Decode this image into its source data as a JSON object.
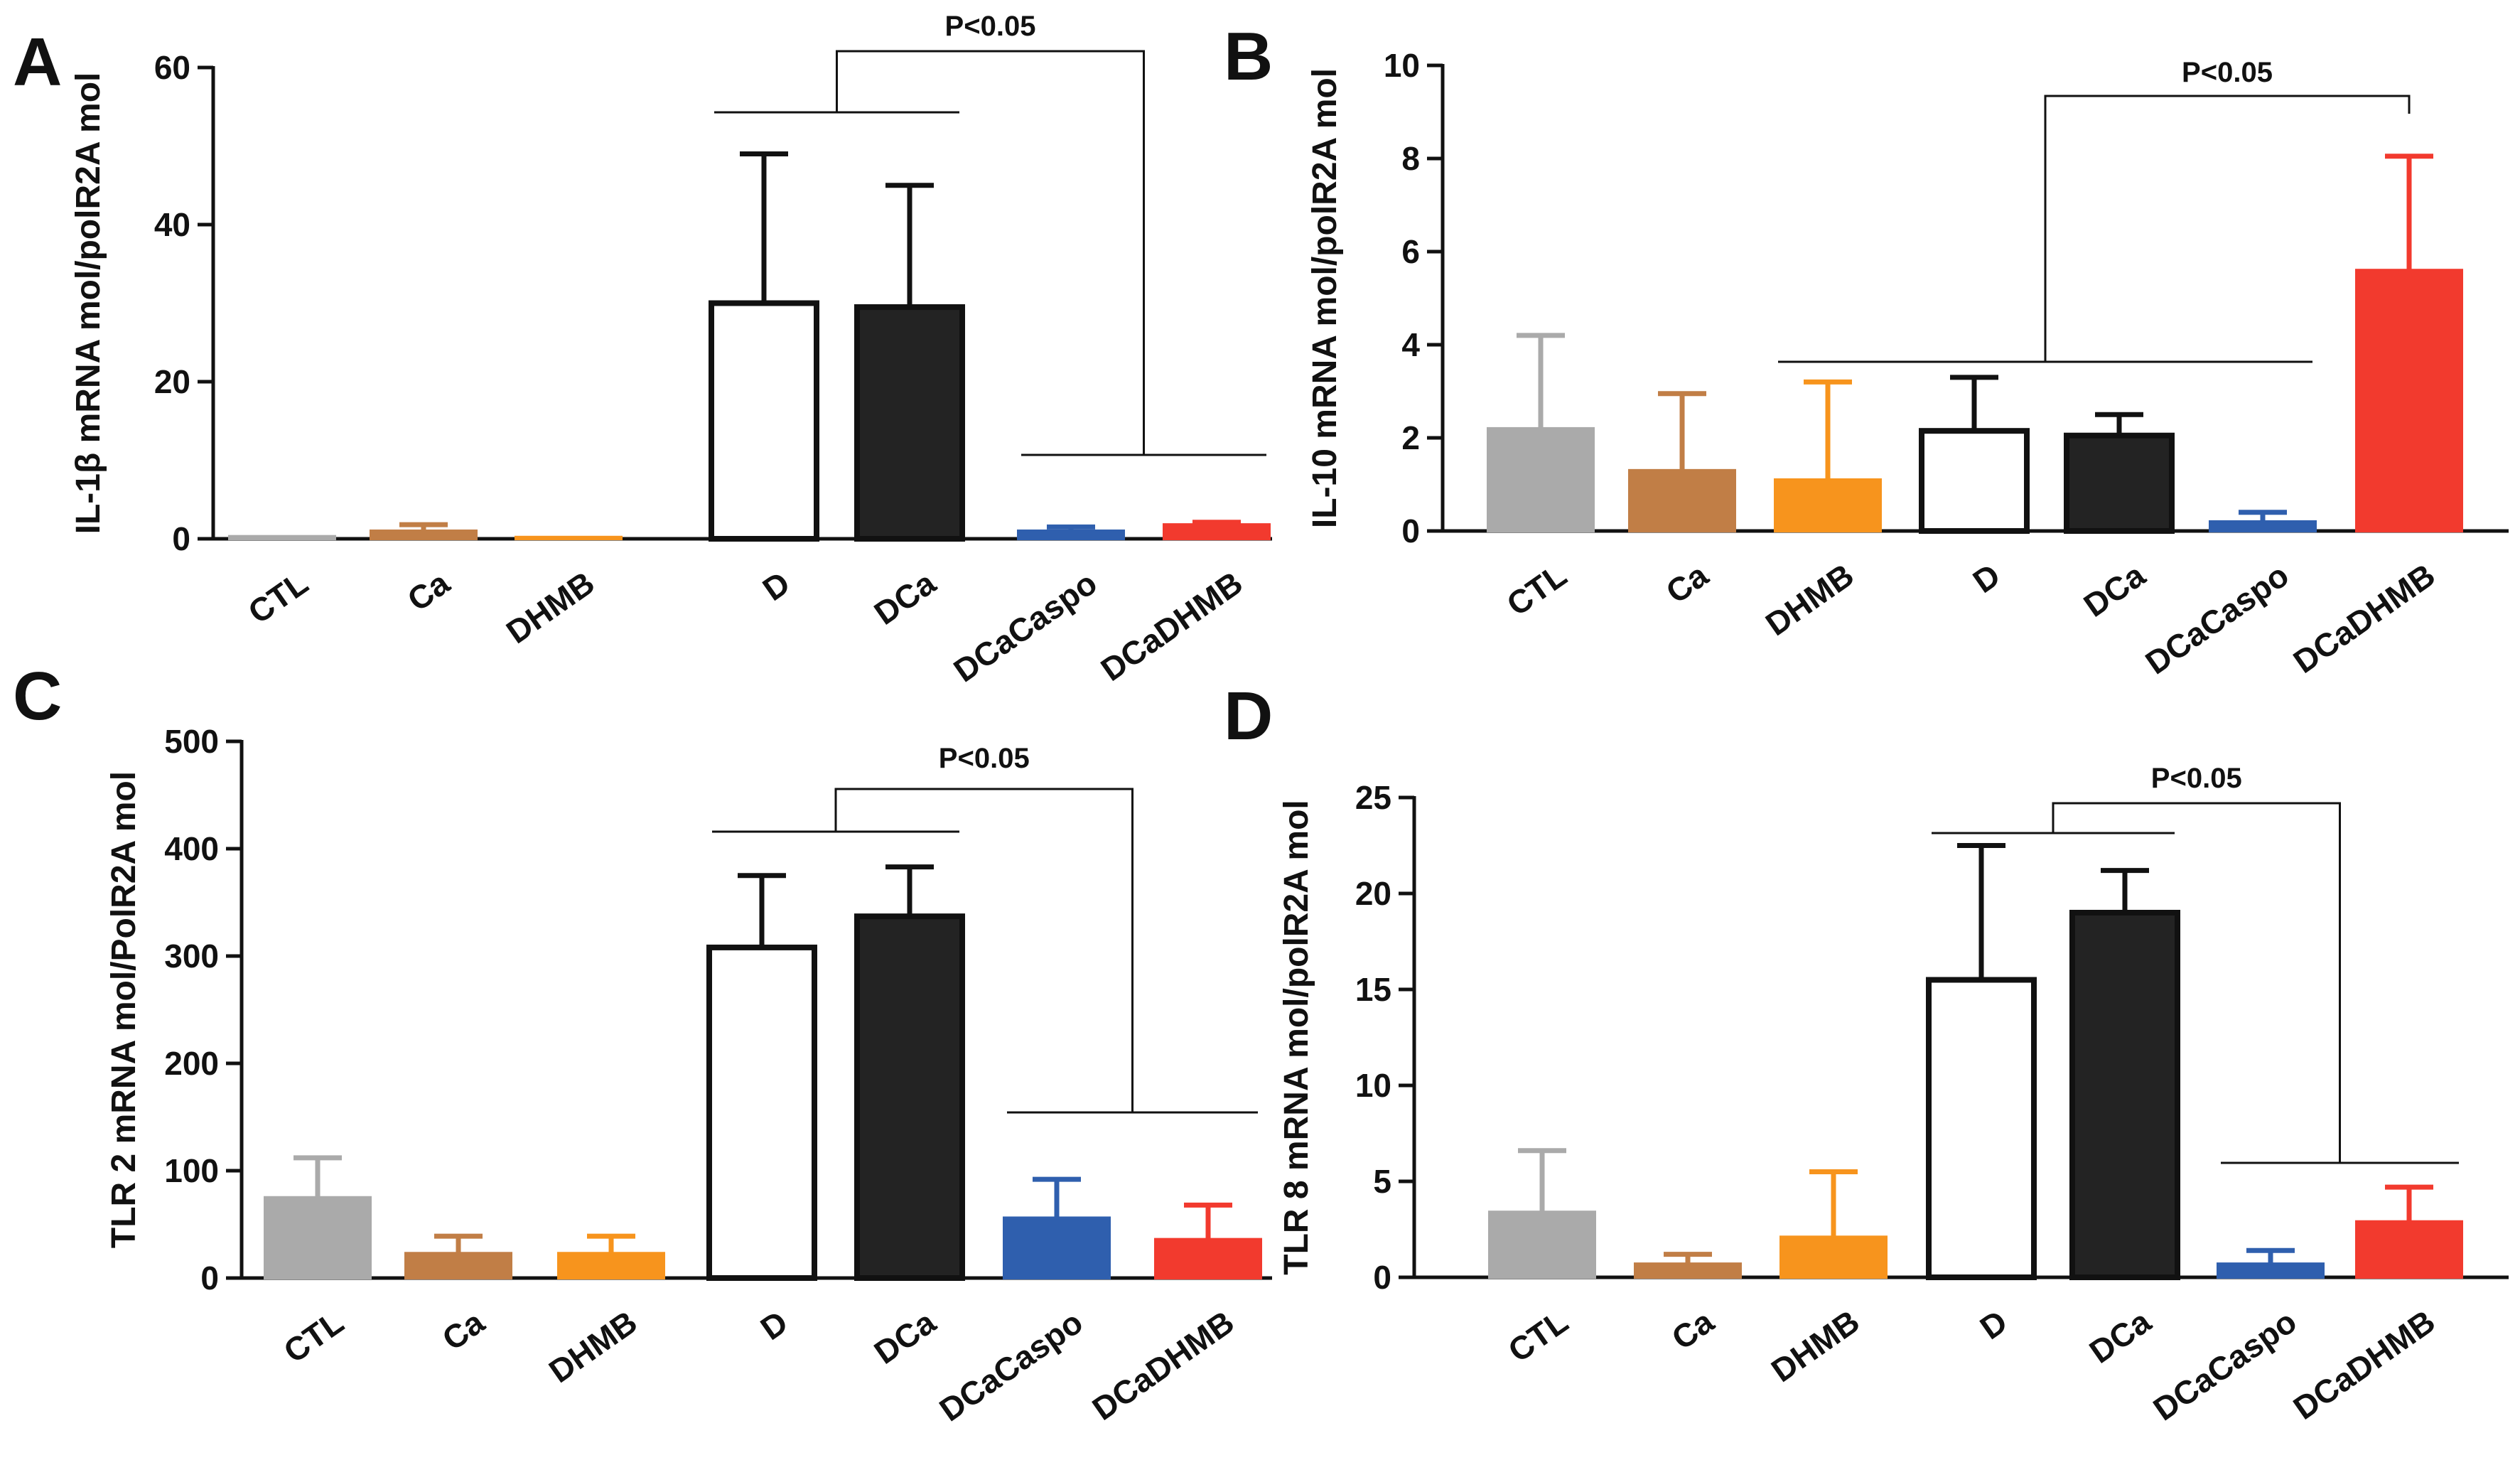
{
  "colors": {
    "CTL": "#aaaaaa",
    "Ca": "#c17e46",
    "DHMB": "#f7941d",
    "D": "#ffffff",
    "DCa": "#232323",
    "DCaCaspo": "#2f5fae",
    "DCaDHMB": "#f23a2e"
  },
  "chart_data": [
    {
      "id": "A",
      "panel": "A",
      "type": "bar",
      "ylabel": "IL-1β mRNA mol/polR2A mol",
      "ylim": [
        0,
        60
      ],
      "yticks": [
        0,
        20,
        40,
        60
      ],
      "categories": [
        "CTL",
        "Ca",
        "DHMB",
        "D",
        "DCa",
        "DCaCaspo",
        "DCaDHMB"
      ],
      "values": [
        0.3,
        1.0,
        0.2,
        30,
        29.5,
        1.0,
        1.8
      ],
      "errors": [
        0,
        0.8,
        0,
        19,
        15.5,
        0.5,
        0.3
      ],
      "significance": "P<0.05"
    },
    {
      "id": "B",
      "panel": "B",
      "type": "bar",
      "ylabel": "IL-10 mRNA mol/polR2A mol",
      "ylim": [
        0,
        10
      ],
      "yticks": [
        0,
        2,
        4,
        6,
        8,
        10
      ],
      "categories": [
        "CTL",
        "Ca",
        "DHMB",
        "D",
        "DCa",
        "DCaCaspo",
        "DCaDHMB"
      ],
      "values": [
        2.2,
        1.3,
        1.1,
        2.15,
        2.05,
        0.2,
        5.6
      ],
      "errors": [
        2.0,
        1.65,
        2.1,
        1.15,
        0.45,
        0.2,
        2.45
      ],
      "significance": "P<0.05"
    },
    {
      "id": "C",
      "panel": "C",
      "type": "bar",
      "ylabel": "TLR 2 mRNA mol/PolR2A mol",
      "ylim": [
        0,
        500
      ],
      "yticks": [
        0,
        100,
        200,
        300,
        400,
        500
      ],
      "categories": [
        "CTL",
        "Ca",
        "DHMB",
        "D",
        "DCa",
        "DCaCaspo",
        "DCaDHMB"
      ],
      "values": [
        75,
        23,
        23,
        308,
        337,
        56,
        36
      ],
      "errors": [
        37,
        16,
        16,
        67,
        46,
        36,
        32
      ],
      "significance": "P<0.05"
    },
    {
      "id": "D",
      "panel": "D",
      "type": "bar",
      "ylabel": "TLR 8 mRNA mol/polR2A mol",
      "ylim": [
        0,
        25
      ],
      "yticks": [
        0,
        5,
        10,
        15,
        20,
        25
      ],
      "categories": [
        "CTL",
        "Ca",
        "DHMB",
        "D",
        "DCa",
        "DCaCaspo",
        "DCaDHMB"
      ],
      "values": [
        3.4,
        0.7,
        2.1,
        15.5,
        19.0,
        0.7,
        2.9
      ],
      "errors": [
        3.2,
        0.5,
        3.4,
        7.0,
        2.2,
        0.7,
        1.8
      ],
      "significance": "P<0.05"
    }
  ]
}
